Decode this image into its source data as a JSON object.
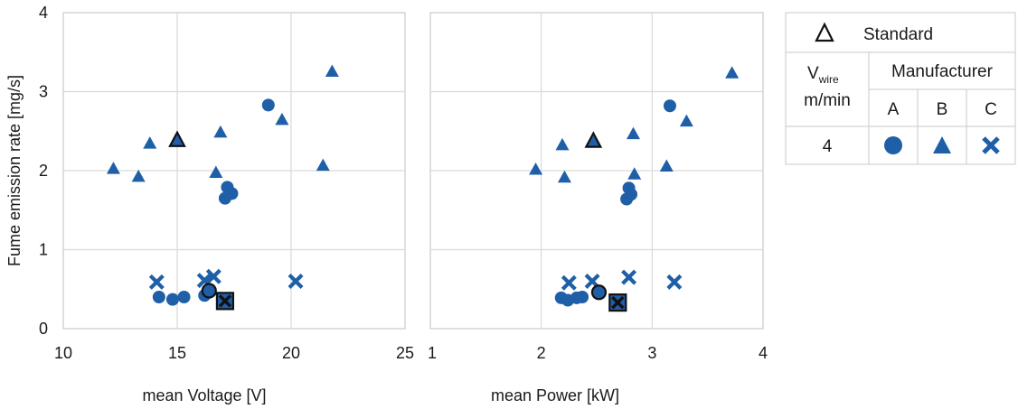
{
  "chart_data": [
    {
      "type": "scatter",
      "xlabel": "mean Voltage [V]",
      "ylabel": "Fume emission rate [mg/s]",
      "xlim": [
        10,
        25
      ],
      "ylim": [
        0,
        4
      ],
      "xticks": [
        "10",
        "15",
        "20",
        "25"
      ],
      "yticks": [
        "0",
        "1",
        "2",
        "3",
        "4"
      ],
      "grid": true,
      "series": [
        {
          "name": "A",
          "marker": "circle",
          "points": [
            [
              19.0,
              2.83
            ],
            [
              17.2,
              1.79
            ],
            [
              17.4,
              1.71
            ],
            [
              17.1,
              1.65
            ],
            [
              14.2,
              0.4
            ],
            [
              14.8,
              0.37
            ],
            [
              15.3,
              0.4
            ],
            [
              16.2,
              0.42
            ],
            [
              16.4,
              0.48
            ]
          ]
        },
        {
          "name": "B",
          "marker": "triangle",
          "points": [
            [
              21.8,
              3.25
            ],
            [
              19.6,
              2.64
            ],
            [
              16.9,
              2.48
            ],
            [
              13.8,
              2.34
            ],
            [
              12.2,
              2.02
            ],
            [
              13.3,
              1.92
            ],
            [
              16.7,
              1.97
            ],
            [
              21.4,
              2.06
            ]
          ]
        },
        {
          "name": "C",
          "marker": "cross",
          "points": [
            [
              14.1,
              0.59
            ],
            [
              16.2,
              0.61
            ],
            [
              16.6,
              0.66
            ],
            [
              20.2,
              0.6
            ],
            [
              17.1,
              0.37
            ]
          ]
        },
        {
          "name": "Standard",
          "marker": "standard",
          "points": [
            [
              15.0,
              2.38
            ],
            [
              16.4,
              0.48
            ],
            [
              17.1,
              0.35
            ]
          ]
        }
      ]
    },
    {
      "type": "scatter",
      "xlabel": "mean Power [kW]",
      "ylabel": "",
      "xlim": [
        1,
        4
      ],
      "ylim": [
        0,
        4
      ],
      "xticks": [
        "1",
        "2",
        "3",
        "4"
      ],
      "yticks": [],
      "grid": true,
      "series": [
        {
          "name": "A",
          "marker": "circle",
          "points": [
            [
              3.16,
              2.82
            ],
            [
              2.79,
              1.78
            ],
            [
              2.81,
              1.7
            ],
            [
              2.77,
              1.64
            ],
            [
              2.18,
              0.39
            ],
            [
              2.24,
              0.36
            ],
            [
              2.32,
              0.39
            ],
            [
              2.37,
              0.4
            ],
            [
              2.52,
              0.46
            ]
          ]
        },
        {
          "name": "B",
          "marker": "triangle",
          "points": [
            [
              3.72,
              3.23
            ],
            [
              3.31,
              2.62
            ],
            [
              2.83,
              2.46
            ],
            [
              2.19,
              2.32
            ],
            [
              1.95,
              2.01
            ],
            [
              2.21,
              1.91
            ],
            [
              2.84,
              1.95
            ],
            [
              3.13,
              2.05
            ]
          ]
        },
        {
          "name": "C",
          "marker": "cross",
          "points": [
            [
              2.25,
              0.58
            ],
            [
              2.46,
              0.6
            ],
            [
              2.79,
              0.65
            ],
            [
              3.2,
              0.59
            ],
            [
              2.7,
              0.34
            ]
          ]
        },
        {
          "name": "Standard",
          "marker": "standard",
          "points": [
            [
              2.47,
              2.37
            ],
            [
              2.52,
              0.46
            ],
            [
              2.69,
              0.33
            ]
          ]
        }
      ]
    }
  ],
  "legend": {
    "standard_label": "Standard",
    "vwire_label": "V",
    "vwire_sub": "wire",
    "vwire_unit": "m/min",
    "manufacturer_label": "Manufacturer",
    "columns": [
      "A",
      "B",
      "C"
    ],
    "vwire_value": "4"
  },
  "colors": {
    "marker": "#1f5fa8",
    "grid": "#d9d9d9",
    "axis": "#bfbfbf",
    "standard_edge": "#111111"
  }
}
